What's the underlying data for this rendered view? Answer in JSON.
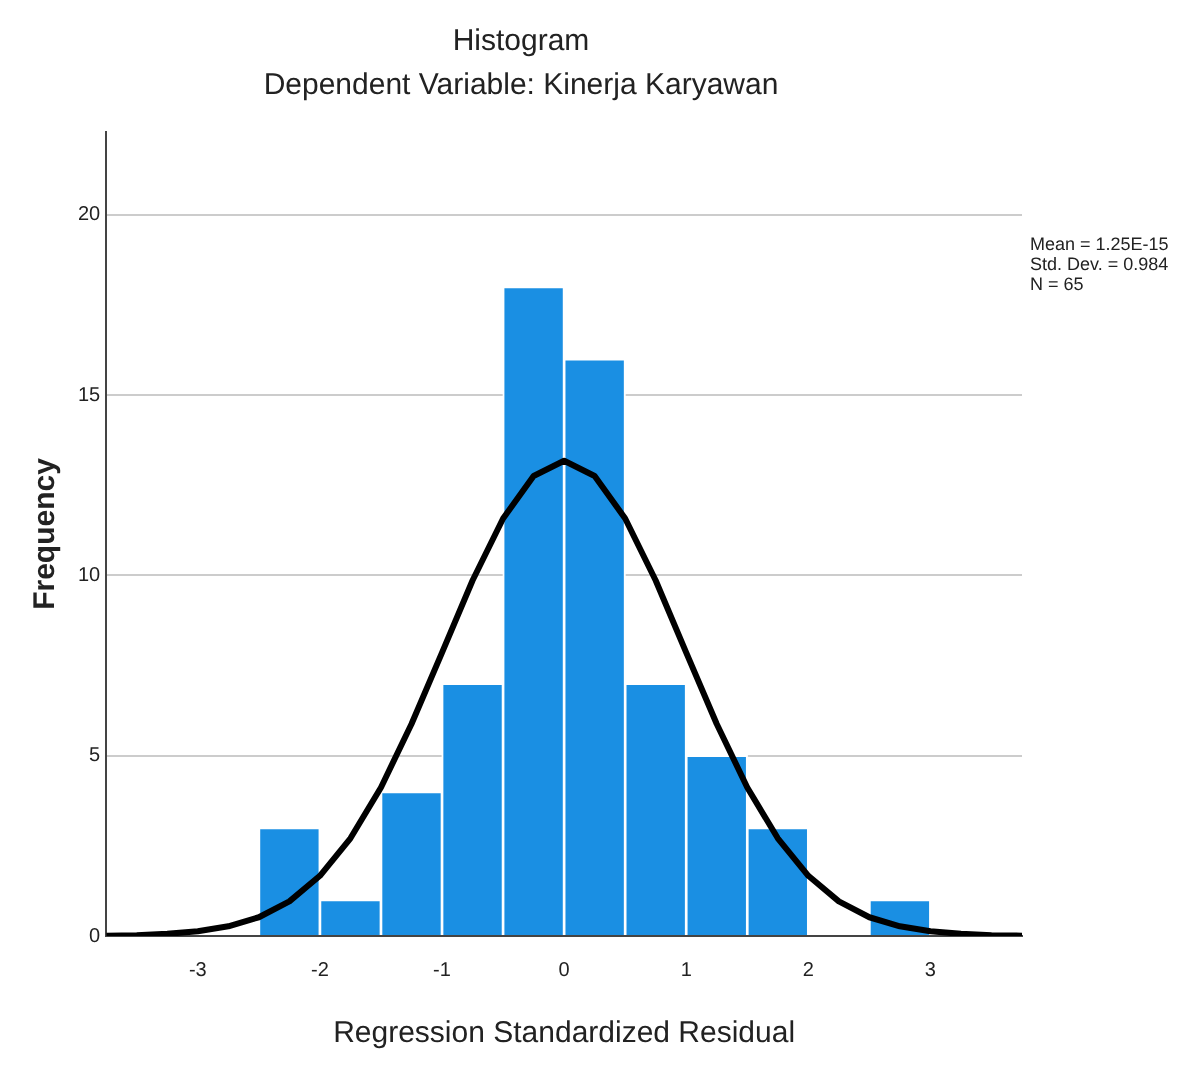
{
  "chart_data": {
    "type": "histogram",
    "title": "Histogram",
    "subtitle": "Dependent Variable: Kinerja Karyawan",
    "xlabel": "Regression Standardized Residual",
    "ylabel": "Frequency",
    "bins": [
      -2.5,
      -2,
      -1.5,
      -1,
      -0.5,
      0,
      0.5,
      1,
      1.5,
      2,
      2.5,
      3
    ],
    "values": [
      3,
      1,
      4,
      7,
      18,
      16,
      7,
      5,
      3,
      0,
      1
    ],
    "color": "#1a8fe3",
    "series": [
      {
        "type": "line",
        "color": "#000000",
        "x": [
          -3.75,
          -3.5,
          -3.25,
          -3,
          -2.75,
          -2.5,
          -2.25,
          -2,
          -1.75,
          -1.5,
          -1.25,
          -1,
          -0.75,
          -0.5,
          -0.25,
          0,
          0.25,
          0.5,
          0.75,
          1,
          1.25,
          1.5,
          1.75,
          2,
          2.25,
          2.5,
          2.75,
          3,
          3.25,
          3.5,
          3.75
        ],
        "values": [
          0.01,
          0.02,
          0.06,
          0.13,
          0.27,
          0.52,
          0.96,
          1.67,
          2.71,
          4.12,
          5.88,
          7.86,
          9.86,
          11.58,
          12.76,
          13.18,
          12.76,
          11.58,
          9.86,
          7.86,
          5.88,
          4.12,
          2.71,
          1.67,
          0.96,
          0.52,
          0.27,
          0.13,
          0.06,
          0.02,
          0.01
        ]
      }
    ],
    "xlim": [
      -3.75,
      3.75
    ],
    "xticks": [
      -3,
      -2,
      -1,
      0,
      1,
      2,
      3
    ],
    "ylim": [
      0,
      22.3
    ],
    "yticks": [
      0,
      5,
      10,
      15,
      20
    ],
    "grid": "y",
    "legend": false,
    "marker": "none",
    "line_style": "solid",
    "annotations": [
      "Mean = 1.25E-15",
      "Std. Dev. = 0.984",
      "N = 65"
    ]
  }
}
